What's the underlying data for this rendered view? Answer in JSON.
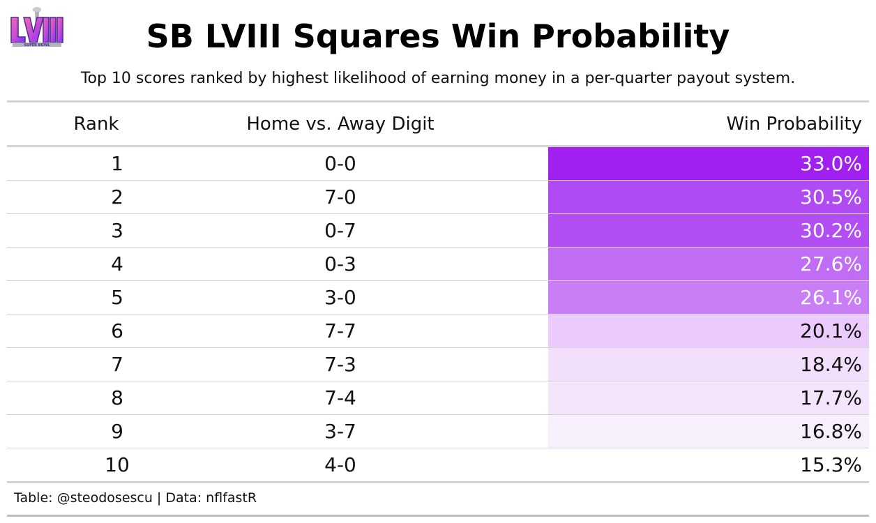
{
  "title": "SB LVIII Squares Win Probability",
  "subtitle": "Top 10 scores ranked by highest likelihood of earning money in a per-quarter payout system.",
  "logo": {
    "icon": "super-bowl-lviii-logo",
    "text": "SUPER BOWL",
    "colors": [
      "#7b2ff7",
      "#c94bd8",
      "#f26aa8",
      "#4a2c8f",
      "#b0b3bb"
    ]
  },
  "columns": {
    "rank": "Rank",
    "score": "Home vs. Away Digit",
    "probability": "Win Probability"
  },
  "rows": [
    {
      "rank": "1",
      "score": "0-0",
      "probability": "33.0%",
      "bg": "#a020f0",
      "fg": "#ffffff"
    },
    {
      "rank": "2",
      "score": "7-0",
      "probability": "30.5%",
      "bg": "#b04af3",
      "fg": "#ffffff"
    },
    {
      "rank": "3",
      "score": "0-7",
      "probability": "30.2%",
      "bg": "#b24ef3",
      "fg": "#ffffff"
    },
    {
      "rank": "4",
      "score": "0-3",
      "probability": "27.6%",
      "bg": "#c06cf4",
      "fg": "#ffffff"
    },
    {
      "rank": "5",
      "score": "3-0",
      "probability": "26.1%",
      "bg": "#c97ef6",
      "fg": "#ffffff"
    },
    {
      "rank": "6",
      "score": "7-7",
      "probability": "20.1%",
      "bg": "#eacbfb",
      "fg": "#111111"
    },
    {
      "rank": "7",
      "score": "7-3",
      "probability": "18.4%",
      "bg": "#f1dffb",
      "fg": "#111111"
    },
    {
      "rank": "8",
      "score": "7-4",
      "probability": "17.7%",
      "bg": "#f4e5fc",
      "fg": "#111111"
    },
    {
      "rank": "9",
      "score": "3-7",
      "probability": "16.8%",
      "bg": "#f8effd",
      "fg": "#111111"
    },
    {
      "rank": "10",
      "score": "4-0",
      "probability": "15.3%",
      "bg": "#ffffff",
      "fg": "#111111"
    }
  ],
  "footer": "Table: @steodosescu | Data: nflfastR"
}
